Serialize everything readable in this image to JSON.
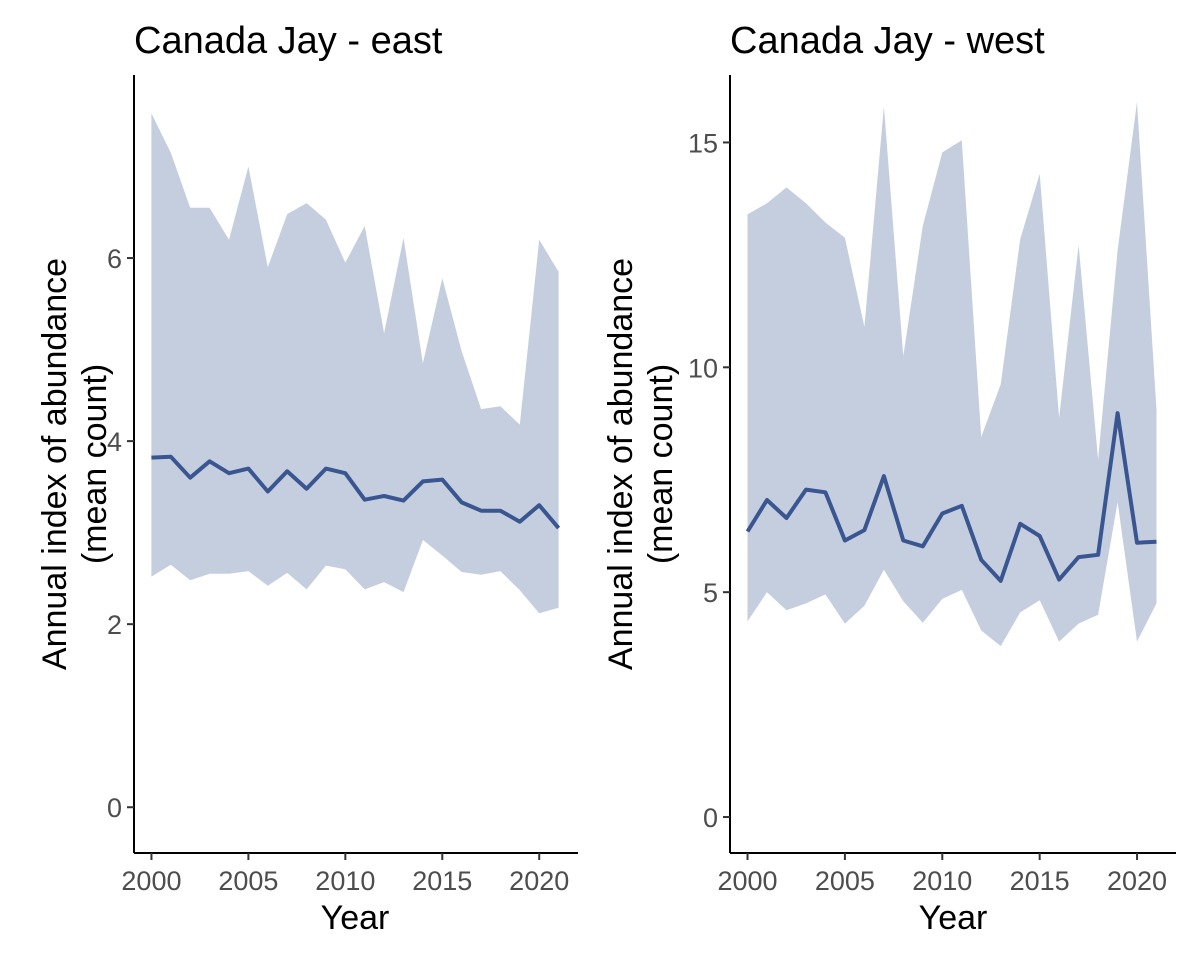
{
  "chart_data": [
    {
      "type": "area",
      "title": "Canada Jay - east",
      "xlabel": "Year",
      "ylabel": [
        "Annual index of abundance",
        "(mean count)"
      ],
      "xlim": [
        1999.1,
        2022.0
      ],
      "ylim": [
        -0.5,
        8.0
      ],
      "xticks": [
        2000,
        2005,
        2010,
        2015,
        2020
      ],
      "xtick_labels": [
        "2000",
        "2005",
        "2010",
        "2015",
        "2020"
      ],
      "yticks": [
        0,
        2,
        4,
        6
      ],
      "ytick_labels": [
        "0",
        "2",
        "4",
        "6"
      ],
      "grid": false,
      "legend": "none",
      "x": [
        2000,
        2001,
        2002,
        2003,
        2004,
        2005,
        2006,
        2007,
        2008,
        2009,
        2010,
        2011,
        2012,
        2013,
        2014,
        2015,
        2016,
        2017,
        2018,
        2019,
        2020,
        2021
      ],
      "series": [
        {
          "values": [
            3.82,
            3.83,
            3.6,
            3.78,
            3.65,
            3.7,
            3.45,
            3.67,
            3.48,
            3.7,
            3.65,
            3.36,
            3.4,
            3.35,
            3.56,
            3.58,
            3.33,
            3.24,
            3.24,
            3.12,
            3.3,
            3.05
          ],
          "lower": [
            2.52,
            2.65,
            2.48,
            2.55,
            2.55,
            2.58,
            2.42,
            2.56,
            2.38,
            2.64,
            2.6,
            2.38,
            2.46,
            2.35,
            2.92,
            2.75,
            2.57,
            2.54,
            2.58,
            2.37,
            2.12,
            2.18
          ],
          "upper": [
            7.58,
            7.15,
            6.55,
            6.55,
            6.2,
            7.0,
            5.9,
            6.48,
            6.6,
            6.42,
            5.95,
            6.35,
            5.18,
            6.22,
            4.85,
            5.78,
            4.98,
            4.35,
            4.38,
            4.18,
            6.2,
            5.85
          ]
        }
      ],
      "colors": {
        "line": "#3a5690",
        "ribbon": "#c5cedf"
      }
    },
    {
      "type": "area",
      "title": "Canada Jay - west",
      "xlabel": "Year",
      "ylabel": [
        "Annual index of abundance",
        "(mean count)"
      ],
      "xlim": [
        1999.1,
        2022.0
      ],
      "ylim": [
        -0.8,
        16.5
      ],
      "xticks": [
        2000,
        2005,
        2010,
        2015,
        2020
      ],
      "xtick_labels": [
        "2000",
        "2005",
        "2010",
        "2015",
        "2020"
      ],
      "yticks": [
        0,
        5,
        10,
        15
      ],
      "ytick_labels": [
        "0",
        "5",
        "10",
        "15"
      ],
      "grid": false,
      "legend": "none",
      "x": [
        2000,
        2001,
        2002,
        2003,
        2004,
        2005,
        2006,
        2007,
        2008,
        2009,
        2010,
        2011,
        2012,
        2013,
        2014,
        2015,
        2016,
        2017,
        2018,
        2019,
        2020,
        2021
      ],
      "series": [
        {
          "values": [
            6.35,
            7.05,
            6.65,
            7.28,
            7.22,
            6.15,
            6.38,
            7.58,
            6.15,
            6.02,
            6.75,
            6.92,
            5.72,
            5.25,
            6.52,
            6.25,
            5.28,
            5.78,
            5.83,
            8.98,
            6.1,
            6.12
          ],
          "lower": [
            4.35,
            5.0,
            4.6,
            4.75,
            4.95,
            4.3,
            4.7,
            5.5,
            4.8,
            4.32,
            4.85,
            5.05,
            4.15,
            3.8,
            4.55,
            4.82,
            3.9,
            4.3,
            4.5,
            7.0,
            3.9,
            4.75
          ],
          "upper": [
            13.4,
            13.65,
            14.0,
            13.65,
            13.22,
            12.88,
            10.9,
            15.8,
            10.25,
            13.15,
            14.78,
            15.05,
            8.45,
            9.62,
            12.85,
            14.3,
            8.88,
            12.72,
            7.95,
            12.6,
            15.9,
            9.05
          ]
        }
      ],
      "colors": {
        "line": "#3a5690",
        "ribbon": "#c5cedf"
      }
    }
  ]
}
